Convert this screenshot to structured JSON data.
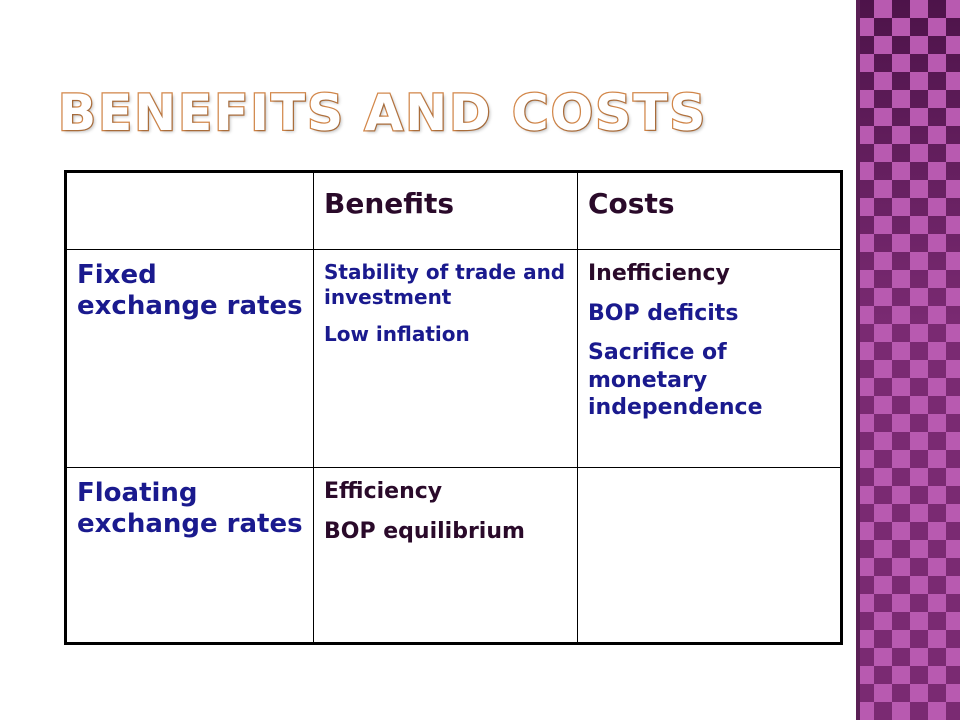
{
  "slide": {
    "title": "Benefits and costs"
  },
  "table": {
    "headers": [
      "",
      "Benefits",
      "Costs"
    ],
    "rows": [
      {
        "label": "Fixed exchange rates",
        "benefits": [
          "Stability of trade and investment",
          "Low inflation"
        ],
        "costs": [
          "Inefficiency",
          "BOP deficits",
          "Sacrifice of monetary independence"
        ]
      },
      {
        "label": "Floating exchange rates",
        "benefits": [
          "Efficiency",
          "BOP equilibrium"
        ],
        "costs": []
      }
    ]
  },
  "colors": {
    "accent_strip": "#7a2a72",
    "title_outline": "#d4884a",
    "row_text": "#1a1a8e",
    "header_text": "#2a0a2a"
  }
}
